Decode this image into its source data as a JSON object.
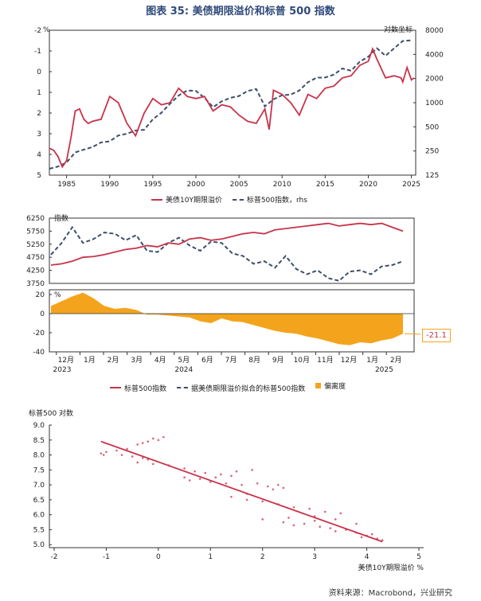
{
  "figure_title": "图表 35: 美债期限溢价和标普 500 指数",
  "source": "资料来源：Macrobond，兴业研究",
  "colors": {
    "red": "#c8334a",
    "navy": "#3e4f6b",
    "orange": "#f4a41c",
    "title": "#2f4a7a"
  },
  "chart_data": [
    {
      "type": "line",
      "left_unit": "%",
      "right_unit": "对数坐标",
      "left_ticks": [
        "-2",
        "-1",
        "0",
        "1",
        "2",
        "3",
        "4",
        "5"
      ],
      "left_range": [
        -2,
        5
      ],
      "left_inverted": true,
      "right_ticks": [
        "8000",
        "4000",
        "2000",
        "1000",
        "500",
        "250",
        "125"
      ],
      "right_range": [
        125,
        8000
      ],
      "right_log": true,
      "x_ticks": [
        "1985",
        "1990",
        "1995",
        "2000",
        "2005",
        "2010",
        "2015",
        "2020",
        "2025"
      ],
      "x_range": [
        1983,
        2025.5
      ],
      "legend": [
        "美债10Y期限溢价",
        "标普500指数，rhs"
      ],
      "series": [
        {
          "name": "美债10Y期限溢价",
          "axis": "left",
          "x": [
            1983,
            1983.5,
            1984,
            1984.5,
            1985,
            1985.5,
            1986,
            1986.5,
            1987,
            1987.5,
            1988,
            1989,
            1990,
            1991,
            1992,
            1993,
            1994,
            1995,
            1996,
            1997,
            1998,
            1999,
            2000,
            2001,
            2002,
            2003,
            2004,
            2005,
            2006,
            2007,
            2008,
            2008.5,
            2009,
            2010,
            2011,
            2012,
            2013,
            2014,
            2015,
            2016,
            2017,
            2018,
            2019,
            2020,
            2020.5,
            2021,
            2022,
            2023,
            2023.8,
            2024,
            2024.5,
            2025,
            2025.3
          ],
          "values": [
            3.7,
            3.8,
            4.1,
            4.6,
            4.3,
            3.2,
            1.9,
            1.8,
            2.3,
            2.5,
            2.4,
            2.3,
            1.2,
            1.5,
            2.5,
            3.1,
            2.0,
            1.3,
            1.6,
            1.5,
            0.8,
            1.2,
            1.3,
            1.2,
            1.9,
            1.6,
            1.7,
            2.1,
            2.4,
            2.5,
            1.8,
            2.8,
            0.9,
            1.1,
            1.5,
            2.1,
            1.1,
            1.3,
            0.8,
            0.7,
            0.3,
            0.2,
            -0.3,
            -0.5,
            -1.1,
            -0.6,
            0.3,
            0.2,
            0.3,
            0.5,
            -0.2,
            0.4,
            0.3
          ]
        },
        {
          "name": "标普500指数，rhs",
          "axis": "right",
          "x": [
            1983,
            1984,
            1985,
            1986,
            1987,
            1988,
            1989,
            1990,
            1991,
            1992,
            1993,
            1994,
            1995,
            1996,
            1997,
            1998,
            1999,
            2000,
            2001,
            2002,
            2003,
            2004,
            2005,
            2006,
            2007,
            2008,
            2009,
            2010,
            2011,
            2012,
            2013,
            2014,
            2015,
            2016,
            2017,
            2018,
            2019,
            2020,
            2021,
            2022,
            2023,
            2024,
            2025
          ],
          "values": [
            150,
            160,
            180,
            240,
            260,
            280,
            320,
            330,
            390,
            410,
            450,
            460,
            620,
            750,
            970,
            1230,
            1420,
            1400,
            1150,
            880,
            1040,
            1150,
            1210,
            1400,
            1480,
            900,
            1100,
            1240,
            1260,
            1420,
            1800,
            2050,
            2060,
            2240,
            2670,
            2500,
            3230,
            3750,
            4770,
            3840,
            4770,
            5880,
            6000
          ]
        }
      ]
    },
    {
      "type": "line",
      "y_ticks": [
        "6250",
        "5750",
        "5250",
        "4750",
        "4250",
        "3750"
      ],
      "y_range": [
        3750,
        6250
      ],
      "y_unit": "指数",
      "legend": [
        "标普500指数",
        "据美债期限溢价拟合的标普500指数",
        "偏离度"
      ],
      "series": [
        {
          "name": "标普500指数",
          "x": [
            0,
            0.5,
            1,
            1.5,
            2,
            2.5,
            3,
            3.5,
            4,
            4.5,
            5,
            5.5,
            6,
            6.5,
            7,
            7.5,
            8,
            8.5,
            9,
            9.5,
            10,
            10.5,
            11,
            11.5,
            12,
            12.5,
            13,
            13.5,
            14,
            14.5,
            15,
            15.5,
            16,
            16.5
          ],
          "values": [
            4450,
            4500,
            4600,
            4750,
            4780,
            4850,
            4950,
            5050,
            5100,
            5200,
            5150,
            5300,
            5250,
            5450,
            5500,
            5400,
            5450,
            5550,
            5650,
            5700,
            5650,
            5800,
            5850,
            5900,
            5950,
            6000,
            6050,
            5950,
            6000,
            6050,
            6000,
            6050,
            5900,
            5750
          ]
        },
        {
          "name": "据美债期限溢价拟合的标普500指数",
          "x": [
            0,
            0.5,
            1,
            1.5,
            2,
            2.5,
            3,
            3.5,
            4,
            4.5,
            5,
            5.5,
            6,
            6.5,
            7,
            7.5,
            8,
            8.5,
            9,
            9.5,
            10,
            10.5,
            11,
            11.5,
            12,
            12.5,
            13,
            13.5,
            14,
            14.5,
            15,
            15.5,
            16,
            16.5
          ],
          "values": [
            4850,
            5300,
            5900,
            5300,
            5450,
            5700,
            5650,
            5400,
            5600,
            5000,
            4950,
            5300,
            5500,
            5200,
            5000,
            5350,
            5300,
            4900,
            4800,
            4500,
            4600,
            4350,
            4800,
            4300,
            4100,
            4250,
            3950,
            3850,
            4200,
            4250,
            4100,
            4400,
            4450,
            4600
          ]
        }
      ]
    },
    {
      "type": "area",
      "y_ticks": [
        "20",
        "0",
        "-20",
        "-40"
      ],
      "y_range": [
        -40,
        25
      ],
      "y_unit": "%",
      "x_ticks": [
        "12月",
        "1月",
        "2月",
        "3月",
        "4月",
        "5月",
        "6月",
        "7月",
        "8月",
        "9月",
        "10月",
        "11月",
        "12月",
        "1月",
        "2月"
      ],
      "year_labels": [
        "2023",
        "2024",
        "2025"
      ],
      "callout": "-21.1",
      "series": [
        {
          "name": "偏离度",
          "x": [
            0,
            0.5,
            1,
            1.5,
            2,
            2.5,
            3,
            3.5,
            4,
            4.5,
            5,
            5.5,
            6,
            6.5,
            7,
            7.5,
            8,
            8.5,
            9,
            9.5,
            10,
            10.5,
            11,
            11.5,
            12,
            12.5,
            13,
            13.5,
            14,
            14.5,
            15,
            15.5,
            16,
            16.5
          ],
          "values": [
            8,
            13,
            18,
            22,
            16,
            8,
            5,
            6,
            4,
            -1,
            -1,
            -2,
            -3,
            -4,
            -8,
            -10,
            -5,
            -8,
            -9,
            -12,
            -15,
            -18,
            -20,
            -21,
            -24,
            -26,
            -29,
            -32,
            -33,
            -30,
            -31,
            -28,
            -26,
            -21
          ]
        }
      ]
    },
    {
      "type": "scatter",
      "x_label": "美债10Y期限溢价 %",
      "y_label": "标普500 对数",
      "x_ticks": [
        "-2",
        "-1",
        "0",
        "1",
        "2",
        "3",
        "4",
        "5"
      ],
      "x_range": [
        -2,
        5
      ],
      "y_ticks": [
        "9.0",
        "8.5",
        "8.0",
        "7.5",
        "7.0",
        "6.5",
        "6.0",
        "5.5",
        "5.0"
      ],
      "y_range": [
        4.9,
        9.0
      ],
      "fit": {
        "x": [
          -1.1,
          4.3
        ],
        "y": [
          8.45,
          5.1
        ]
      },
      "points": [
        [
          -1.1,
          8.05
        ],
        [
          -1.0,
          8.1
        ],
        [
          -0.8,
          8.15
        ],
        [
          -0.6,
          8.2
        ],
        [
          -0.4,
          8.35
        ],
        [
          -0.2,
          8.45
        ],
        [
          0,
          8.5
        ],
        [
          0.1,
          8.6
        ],
        [
          -0.1,
          8.55
        ],
        [
          -0.3,
          8.4
        ],
        [
          -1.05,
          8.0
        ],
        [
          -0.7,
          8.0
        ],
        [
          -0.5,
          7.95
        ],
        [
          -0.3,
          7.9
        ],
        [
          -0.2,
          7.85
        ],
        [
          -0.4,
          7.75
        ],
        [
          -0.1,
          7.7
        ],
        [
          0.2,
          7.65
        ],
        [
          0.5,
          7.55
        ],
        [
          0.7,
          7.45
        ],
        [
          0.9,
          7.4
        ],
        [
          1.2,
          7.35
        ],
        [
          1.5,
          7.45
        ],
        [
          1.8,
          7.5
        ],
        [
          1.4,
          7.3
        ],
        [
          1.1,
          7.25
        ],
        [
          0.8,
          7.2
        ],
        [
          0.5,
          7.25
        ],
        [
          0.6,
          7.15
        ],
        [
          1.0,
          7.1
        ],
        [
          1.3,
          7.05
        ],
        [
          1.6,
          7.0
        ],
        [
          1.9,
          7.05
        ],
        [
          2.1,
          6.95
        ],
        [
          2.3,
          7.0
        ],
        [
          2.4,
          6.9
        ],
        [
          2.2,
          6.85
        ],
        [
          1.7,
          6.7
        ],
        [
          1.4,
          6.6
        ],
        [
          1.7,
          6.5
        ],
        [
          2.0,
          6.45
        ],
        [
          2.3,
          6.35
        ],
        [
          2.6,
          6.25
        ],
        [
          2.9,
          6.2
        ],
        [
          3.2,
          6.1
        ],
        [
          3.5,
          6.05
        ],
        [
          3.0,
          5.95
        ],
        [
          2.5,
          5.9
        ],
        [
          2.0,
          5.85
        ],
        [
          2.4,
          5.75
        ],
        [
          2.8,
          5.7
        ],
        [
          3.1,
          5.6
        ],
        [
          3.3,
          5.55
        ],
        [
          3.6,
          5.5
        ],
        [
          3.8,
          5.4
        ],
        [
          4.0,
          5.3
        ],
        [
          4.2,
          5.2
        ],
        [
          4.3,
          5.15
        ],
        [
          3.9,
          5.25
        ],
        [
          3.4,
          5.45
        ],
        [
          2.6,
          5.65
        ],
        [
          3.0,
          5.8
        ],
        [
          3.4,
          5.85
        ],
        [
          3.8,
          5.7
        ],
        [
          4.1,
          5.35
        ]
      ]
    }
  ]
}
